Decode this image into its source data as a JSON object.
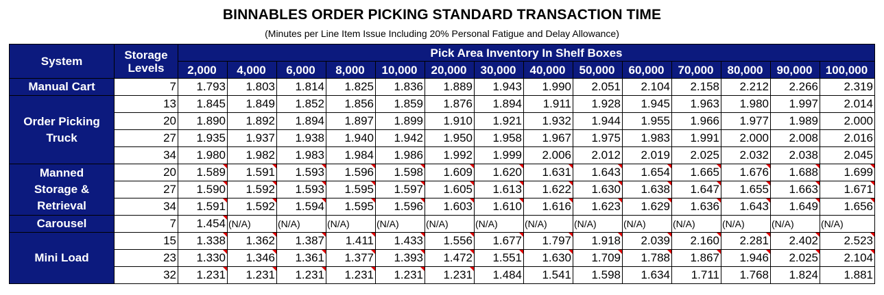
{
  "title": "BINNABLES ORDER PICKING STANDARD TRANSACTION TIME",
  "subtitle": "(Minutes per Line Item Issue Including 20% Personal Fatigue and Delay Allowance)",
  "header": {
    "system": "System",
    "storage_levels_line1": "Storage",
    "storage_levels_line2": "Levels",
    "pick_area": "Pick Area Inventory In Shelf Boxes",
    "columns": [
      "2,000",
      "4,000",
      "6,000",
      "8,000",
      "10,000",
      "20,000",
      "30,000",
      "40,000",
      "50,000",
      "60,000",
      "70,000",
      "80,000",
      "90,000",
      "100,000"
    ]
  },
  "colors": {
    "header_bg": "#0c1a7e",
    "header_text": "#ffffff",
    "flag": "#e00000"
  },
  "groups": [
    {
      "system_lines": [
        "Manual Cart"
      ],
      "rows": [
        {
          "level": "7",
          "values": [
            "1.793",
            "1.803",
            "1.814",
            "1.825",
            "1.836",
            "1.889",
            "1.943",
            "1.990",
            "2.051",
            "2.104",
            "2.158",
            "2.212",
            "2.266",
            "2.319"
          ],
          "flags": []
        }
      ]
    },
    {
      "system_lines": [
        "Order Picking",
        "Truck"
      ],
      "rows": [
        {
          "level": "13",
          "values": [
            "1.845",
            "1.849",
            "1.852",
            "1.856",
            "1.859",
            "1.876",
            "1.894",
            "1.911",
            "1.928",
            "1.945",
            "1.963",
            "1.980",
            "1.997",
            "2.014"
          ],
          "flags": []
        },
        {
          "level": "20",
          "values": [
            "1.890",
            "1.892",
            "1.894",
            "1.897",
            "1.899",
            "1.910",
            "1.921",
            "1.932",
            "1.944",
            "1.955",
            "1.966",
            "1.977",
            "1.989",
            "2.000"
          ],
          "flags": []
        },
        {
          "level": "27",
          "values": [
            "1.935",
            "1.937",
            "1.938",
            "1.940",
            "1.942",
            "1.950",
            "1.958",
            "1.967",
            "1.975",
            "1.983",
            "1.991",
            "2.000",
            "2.008",
            "2.016"
          ],
          "flags": []
        },
        {
          "level": "34",
          "values": [
            "1.980",
            "1.982",
            "1.983",
            "1.984",
            "1.986",
            "1.992",
            "1.999",
            "2.006",
            "2.012",
            "2.019",
            "2.025",
            "2.032",
            "2.038",
            "2.045"
          ],
          "flags": []
        }
      ]
    },
    {
      "system_lines": [
        "Manned",
        "Storage &",
        "Retrieval"
      ],
      "rows": [
        {
          "level": "20",
          "values": [
            "1.589",
            "1.591",
            "1.593",
            "1.596",
            "1.598",
            "1.609",
            "1.620",
            "1.631",
            "1.643",
            "1.654",
            "1.665",
            "1.676",
            "1.688",
            "1.699"
          ],
          "flags": [
            0,
            1,
            2,
            3,
            4,
            5,
            6,
            7,
            8,
            9,
            10,
            11,
            12,
            13
          ]
        },
        {
          "level": "27",
          "values": [
            "1.590",
            "1.592",
            "1.593",
            "1.595",
            "1.597",
            "1.605",
            "1.613",
            "1.622",
            "1.630",
            "1.638",
            "1.647",
            "1.655",
            "1.663",
            "1.671"
          ],
          "flags": [
            0,
            1,
            2,
            3,
            4,
            5,
            6,
            7,
            8,
            9,
            10,
            11,
            12,
            13
          ]
        },
        {
          "level": "34",
          "values": [
            "1.591",
            "1.592",
            "1.594",
            "1.595",
            "1.596",
            "1.603",
            "1.610",
            "1.616",
            "1.623",
            "1.629",
            "1.636",
            "1.643",
            "1.649",
            "1.656"
          ],
          "flags": [
            0,
            1,
            2,
            3,
            4,
            5,
            6,
            7,
            8,
            9,
            10,
            11,
            12,
            13
          ]
        }
      ]
    },
    {
      "system_lines": [
        "Carousel"
      ],
      "rows": [
        {
          "level": "7",
          "values": [
            "1.454",
            "(N/A)",
            "(N/A)",
            "(N/A)",
            "(N/A)",
            "(N/A)",
            "(N/A)",
            "(N/A)",
            "(N/A)",
            "(N/A)",
            "(N/A)",
            "(N/A)",
            "(N/A)",
            "(N/A)"
          ],
          "flags": [
            0
          ]
        }
      ]
    },
    {
      "system_lines": [
        "Mini Load"
      ],
      "rows": [
        {
          "level": "15",
          "values": [
            "1.338",
            "1.362",
            "1.387",
            "1.411",
            "1.433",
            "1.556",
            "1.677",
            "1.797",
            "1.918",
            "2.039",
            "2.160",
            "2.281",
            "2.402",
            "2.523"
          ],
          "flags": [
            0,
            1,
            2,
            3,
            4,
            5,
            6,
            7,
            8,
            9,
            10,
            11,
            12,
            13
          ]
        },
        {
          "level": "23",
          "values": [
            "1.330",
            "1.346",
            "1.361",
            "1.377",
            "1.393",
            "1.472",
            "1.551",
            "1.630",
            "1.709",
            "1.788",
            "1.867",
            "1.946",
            "2.025",
            "2.104"
          ],
          "flags": [
            0,
            1,
            2,
            3,
            4,
            5,
            6,
            7,
            8,
            9,
            10,
            11,
            12,
            13
          ]
        },
        {
          "level": "32",
          "values": [
            "1.231",
            "1.231",
            "1.231",
            "1.231",
            "1.231",
            "1.231",
            "1.484",
            "1.541",
            "1.598",
            "1.634",
            "1.711",
            "1.768",
            "1.824",
            "1.881"
          ],
          "flags": [
            0,
            1,
            2,
            3,
            4,
            5
          ]
        }
      ]
    }
  ]
}
